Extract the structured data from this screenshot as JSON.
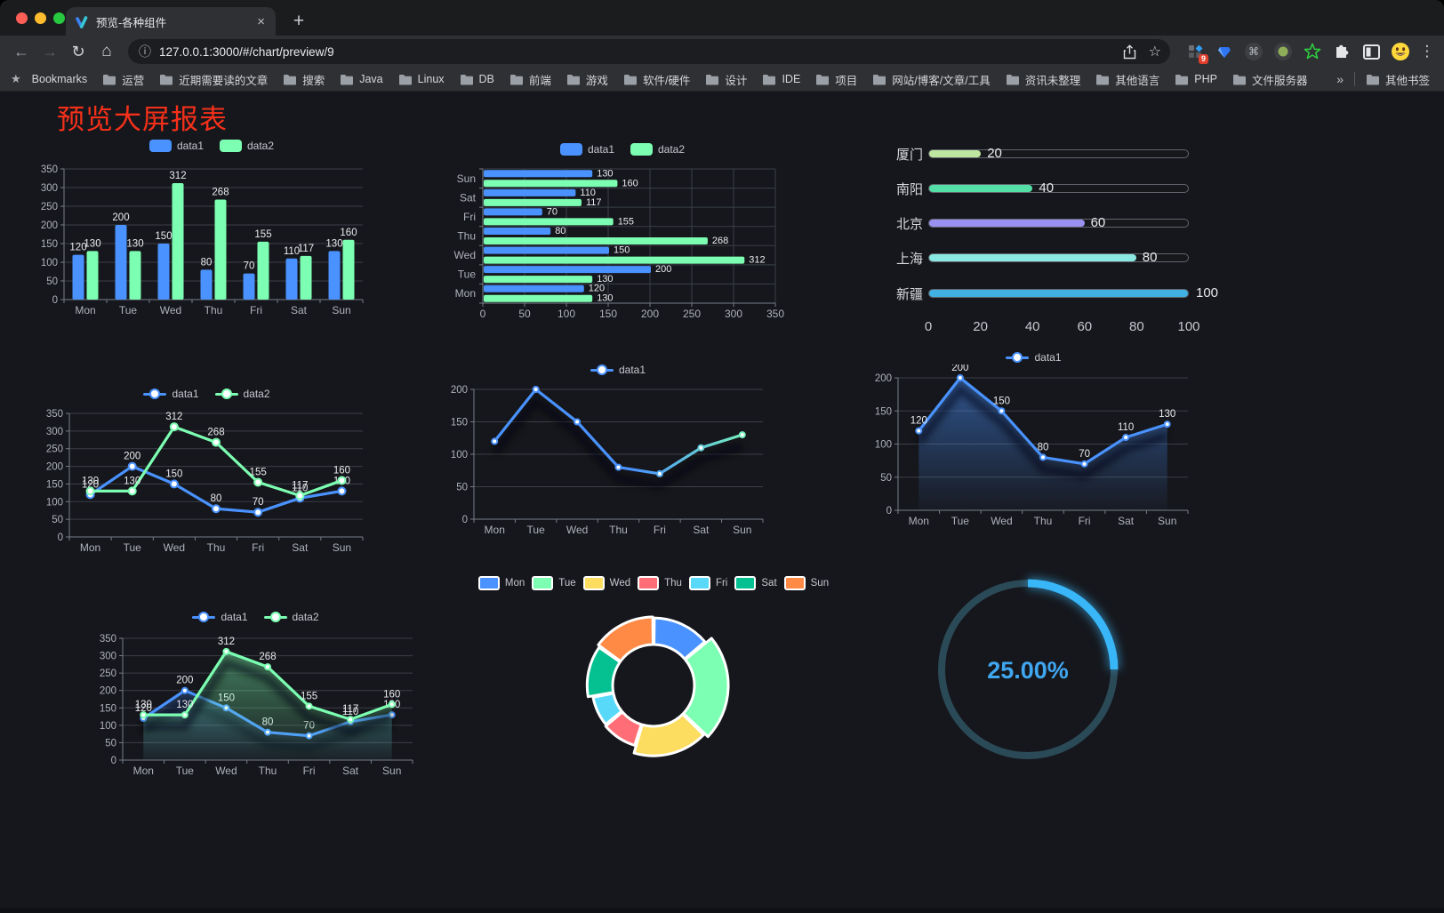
{
  "browser": {
    "tab_title": "预览-各种组件",
    "url": "127.0.0.1:3000/#/chart/preview/9",
    "new_tab_glyph": "+",
    "close_glyph": "×",
    "bookmarks_label": "Bookmarks",
    "bookmarks": [
      "运营",
      "近期需要读的文章",
      "搜索",
      "Java",
      "Linux",
      "DB",
      "前端",
      "游戏",
      "软件/硬件",
      "设计",
      "IDE",
      "项目",
      "网站/博客/文章/工具",
      "资讯未整理",
      "其他语言",
      "PHP",
      "文件服务器"
    ],
    "overflow_chevron": "»",
    "other_bookmarks": "其他书签",
    "extension_badge": "9",
    "icons": {
      "back": "←",
      "forward": "→",
      "reload": "↻",
      "home": "⌂",
      "info": "ⓘ",
      "star": "☆",
      "menu": "⋮",
      "command": "⌘",
      "bookmarks_star": "★"
    }
  },
  "page": {
    "title": "预览大屏报表",
    "title_color": "#f5301a",
    "background": "#16171c"
  },
  "chart_data": [
    {
      "id": "grouped-bar",
      "type": "bar",
      "categories": [
        "Mon",
        "Tue",
        "Wed",
        "Thu",
        "Fri",
        "Sat",
        "Sun"
      ],
      "series": [
        {
          "name": "data1",
          "color": "#4992ff",
          "values": [
            120,
            200,
            150,
            80,
            70,
            110,
            130
          ]
        },
        {
          "name": "data2",
          "color": "#7cffb2",
          "values": [
            130,
            130,
            312,
            268,
            155,
            117,
            160
          ]
        }
      ],
      "ylim": [
        0,
        350
      ],
      "ytick": 50,
      "show_labels": true,
      "legend_position": "top",
      "grid": true
    },
    {
      "id": "horizontal-bar",
      "type": "hbar",
      "categories": [
        "Mon",
        "Tue",
        "Wed",
        "Thu",
        "Fri",
        "Sat",
        "Sun"
      ],
      "series": [
        {
          "name": "data1",
          "color": "#4992ff",
          "values": [
            120,
            200,
            150,
            80,
            70,
            110,
            130
          ]
        },
        {
          "name": "data2",
          "color": "#7cffb2",
          "values": [
            130,
            130,
            312,
            268,
            155,
            117,
            160
          ]
        }
      ],
      "xlim": [
        0,
        350
      ],
      "xtick": 50,
      "show_labels": true,
      "legend_position": "top",
      "grid": true
    },
    {
      "id": "progress-bars",
      "type": "progress",
      "max": 100,
      "axis_ticks": [
        0,
        20,
        40,
        60,
        80,
        100
      ],
      "items": [
        {
          "label": "厦门",
          "value": 20,
          "color": "#bfe6a0"
        },
        {
          "label": "南阳",
          "value": 40,
          "color": "#53dfa5"
        },
        {
          "label": "北京",
          "value": 60,
          "color": "#9a90f0"
        },
        {
          "label": "上海",
          "value": 80,
          "color": "#8ae8e2"
        },
        {
          "label": "新疆",
          "value": 100,
          "color": "#41b1e4"
        }
      ]
    },
    {
      "id": "two-line",
      "type": "line",
      "categories": [
        "Mon",
        "Tue",
        "Wed",
        "Thu",
        "Fri",
        "Sat",
        "Sun"
      ],
      "series": [
        {
          "name": "data1",
          "color": "#4992ff",
          "values": [
            120,
            200,
            150,
            80,
            70,
            110,
            130
          ]
        },
        {
          "name": "data2",
          "color": "#7cffb2",
          "values": [
            130,
            130,
            312,
            268,
            155,
            117,
            160
          ]
        }
      ],
      "ylim": [
        0,
        350
      ],
      "ytick": 50,
      "show_labels": true,
      "marker": 4,
      "legend_position": "top",
      "grid": true
    },
    {
      "id": "gradient-line",
      "type": "line",
      "categories": [
        "Mon",
        "Tue",
        "Wed",
        "Thu",
        "Fri",
        "Sat",
        "Sun"
      ],
      "series": [
        {
          "name": "data1",
          "color": "#4992ff",
          "gradient": [
            "#4992ff",
            "#7cffb2"
          ],
          "values": [
            120,
            200,
            150,
            80,
            70,
            110,
            130
          ]
        }
      ],
      "ylim": [
        0,
        200
      ],
      "ytick": 50,
      "show_labels": false,
      "marker": 3,
      "shadow": true,
      "legend_position": "top",
      "grid": true
    },
    {
      "id": "area-line",
      "type": "line",
      "categories": [
        "Mon",
        "Tue",
        "Wed",
        "Thu",
        "Fri",
        "Sat",
        "Sun"
      ],
      "series": [
        {
          "name": "data1",
          "color": "#4992ff",
          "area": true,
          "values": [
            120,
            200,
            150,
            80,
            70,
            110,
            130
          ]
        }
      ],
      "ylim": [
        0,
        200
      ],
      "ytick": 50,
      "show_labels": true,
      "marker": 3,
      "shadow": true,
      "legend_position": "top",
      "grid": true
    },
    {
      "id": "two-area",
      "type": "line",
      "categories": [
        "Mon",
        "Tue",
        "Wed",
        "Thu",
        "Fri",
        "Sat",
        "Sun"
      ],
      "series": [
        {
          "name": "data1",
          "color": "#4992ff",
          "area": true,
          "values": [
            120,
            200,
            150,
            80,
            70,
            110,
            130
          ]
        },
        {
          "name": "data2",
          "color": "#7cffb2",
          "area": true,
          "values": [
            130,
            130,
            312,
            268,
            155,
            117,
            160
          ]
        }
      ],
      "ylim": [
        0,
        350
      ],
      "ytick": 50,
      "show_labels": true,
      "marker": 3,
      "shadow": true,
      "legend_position": "top",
      "grid": true
    },
    {
      "id": "rose-pie",
      "type": "pie",
      "rose": true,
      "legend_position": "top",
      "items": [
        {
          "name": "Mon",
          "value": 120,
          "color": "#4992ff"
        },
        {
          "name": "Tue",
          "value": 200,
          "color": "#7cffb2"
        },
        {
          "name": "Wed",
          "value": 150,
          "color": "#fddd60"
        },
        {
          "name": "Thu",
          "value": 80,
          "color": "#ff6e76"
        },
        {
          "name": "Fri",
          "value": 70,
          "color": "#58d9f9"
        },
        {
          "name": "Sat",
          "value": 110,
          "color": "#05c091"
        },
        {
          "name": "Sun",
          "value": 130,
          "color": "#ff8a45"
        }
      ]
    },
    {
      "id": "gauge",
      "type": "gauge",
      "value": 25,
      "max": 100,
      "display": "25.00%",
      "color": "#38b6f7",
      "track_color": "#2b4a58",
      "text_color": "#3fa6f0"
    }
  ]
}
